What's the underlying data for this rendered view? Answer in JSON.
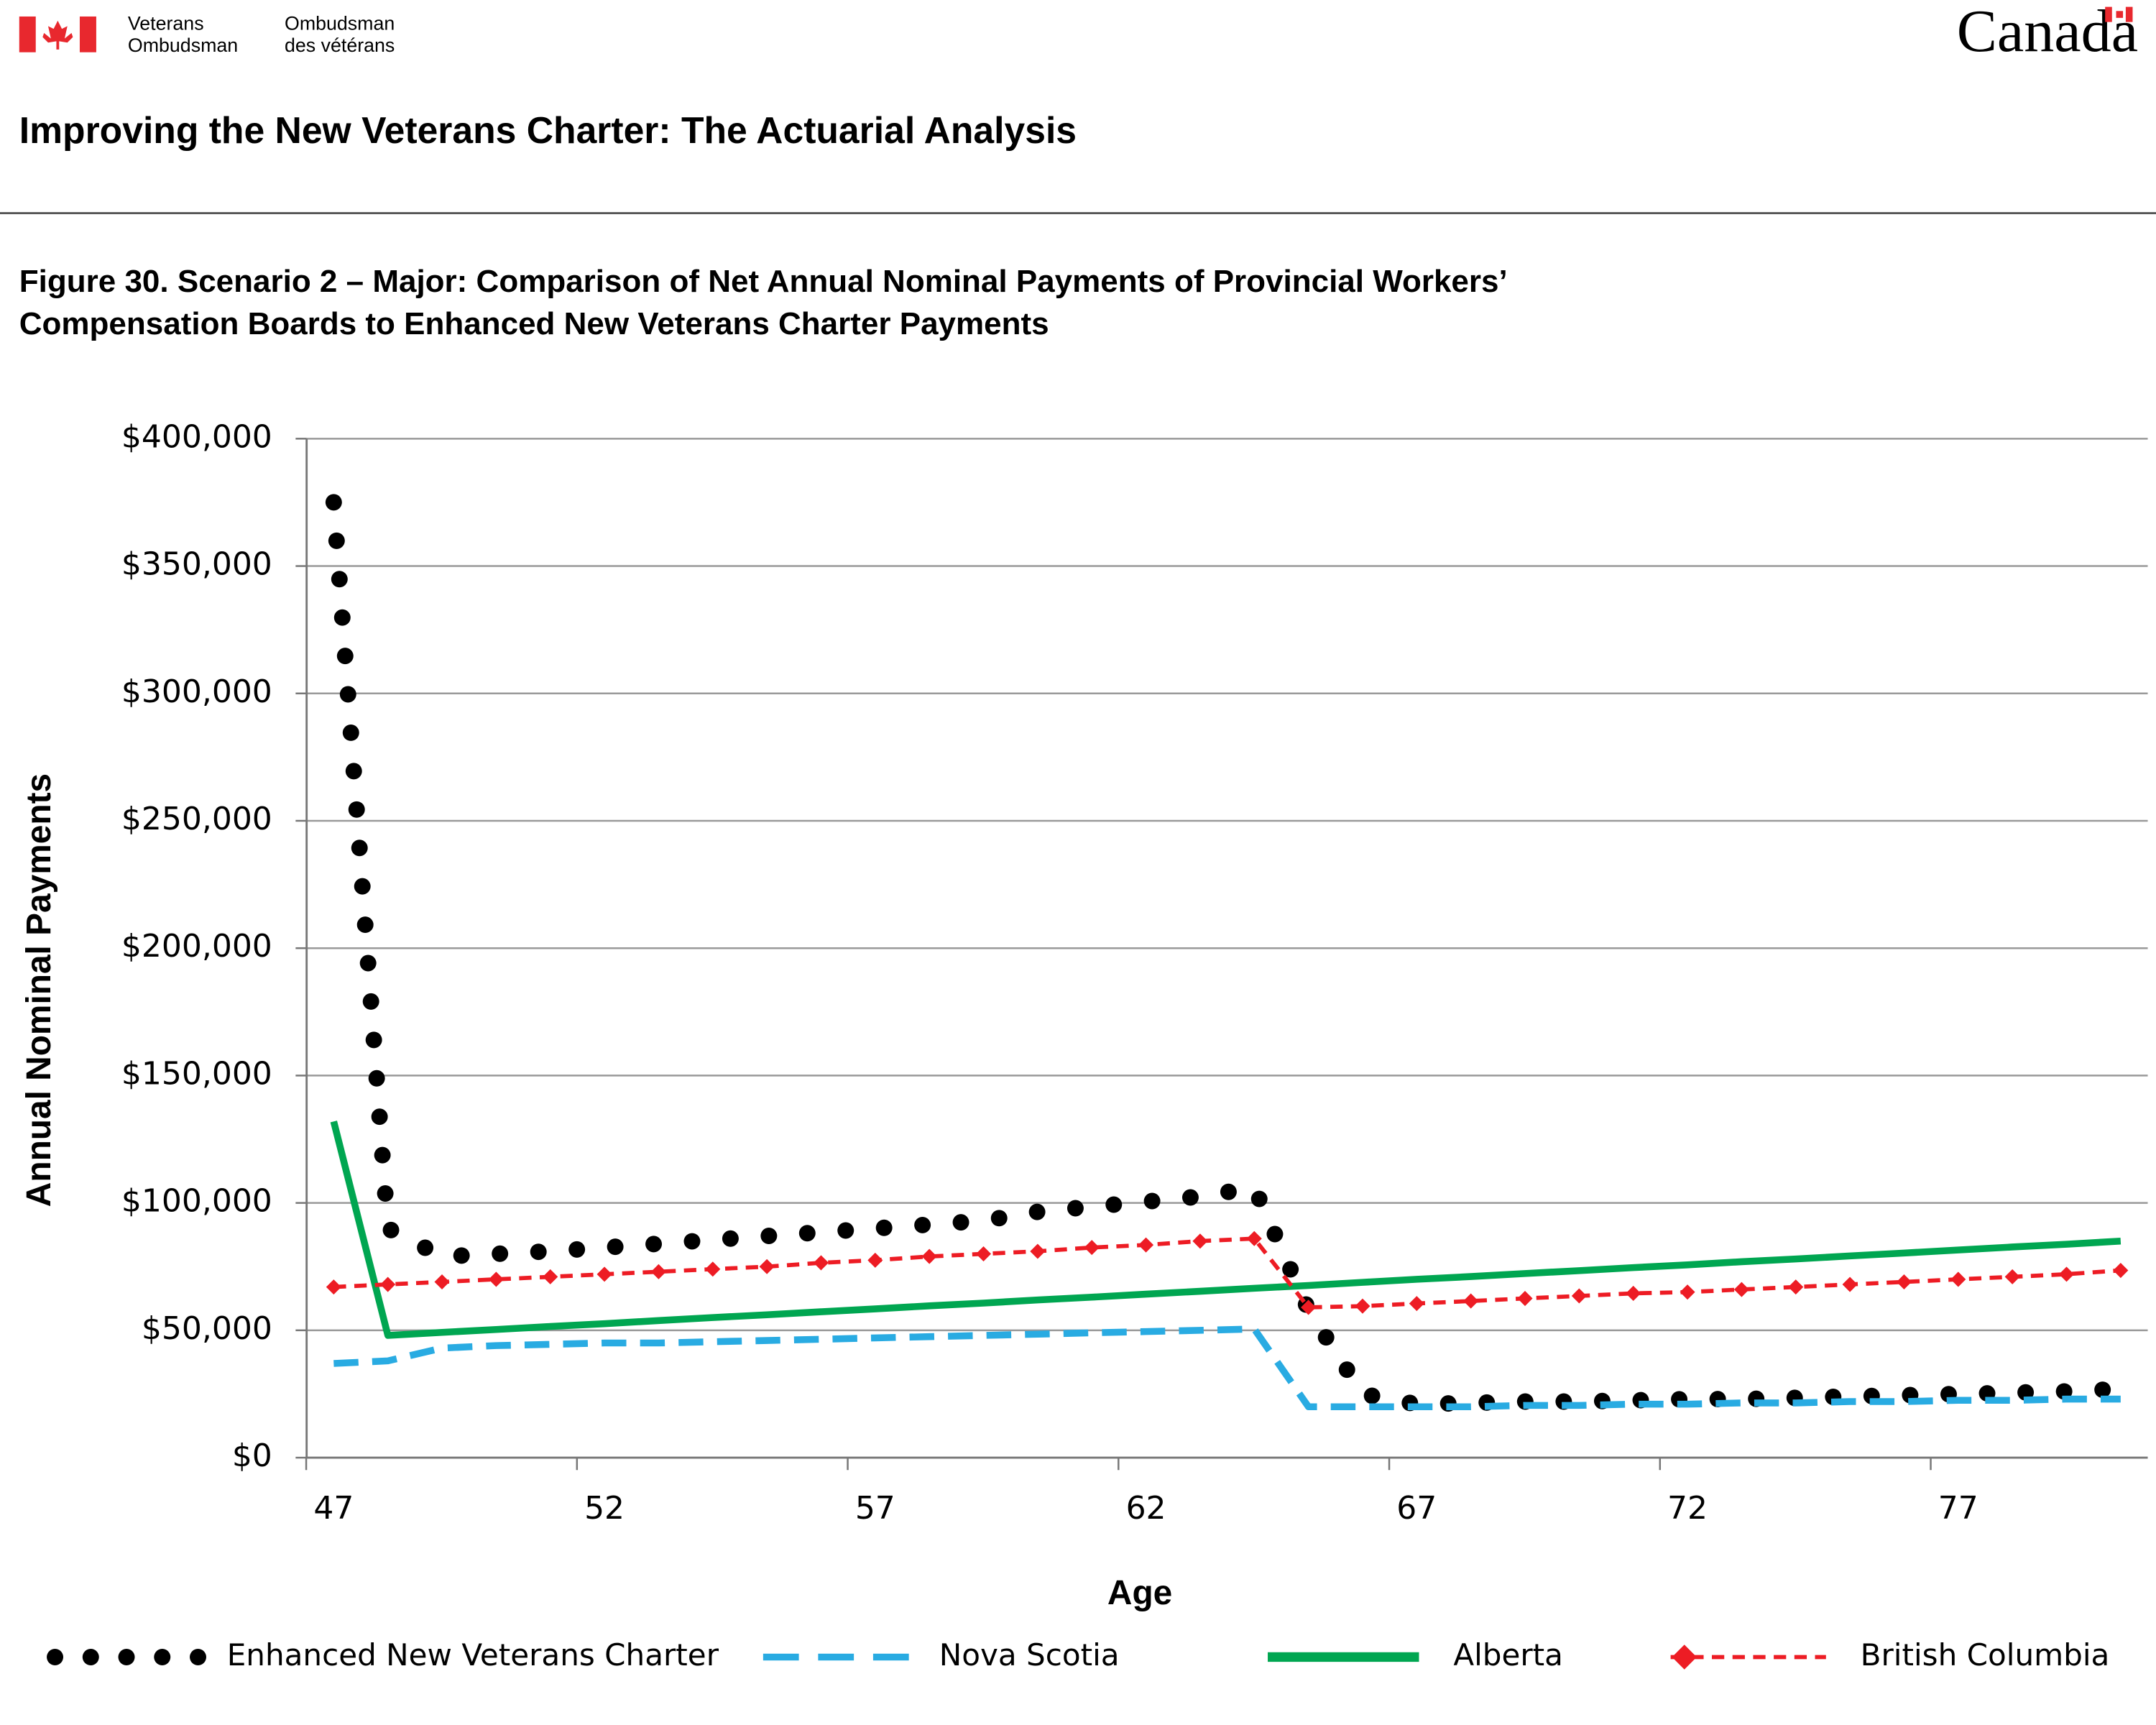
{
  "header": {
    "org_en": [
      "Veterans",
      "Ombudsman"
    ],
    "org_fr": [
      "Ombudsman",
      "des vétérans"
    ],
    "wordmark": "Canada",
    "title": "Improving the New Veterans Charter: The Actuarial Analysis"
  },
  "chart_data": {
    "type": "line",
    "title": [
      "Figure 30. Scenario 2 – Major: Comparison of Net Annual Nominal Payments of Provincial Workers’",
      "Compensation Boards to Enhanced New Veterans Charter Payments"
    ],
    "x_label": "Age",
    "y_label": "Annual Nominal Payments",
    "x": [
      47,
      48,
      49,
      50,
      51,
      52,
      53,
      54,
      55,
      56,
      57,
      58,
      59,
      60,
      61,
      62,
      63,
      64,
      65,
      66,
      67,
      68,
      69,
      70,
      71,
      72,
      73,
      74,
      75,
      76,
      77,
      78,
      79,
      80
    ],
    "xlim": [
      46.5,
      80.5
    ],
    "xticks": [
      47,
      52,
      57,
      62,
      67,
      72,
      77
    ],
    "ylim": [
      0,
      400000
    ],
    "yticks": [
      {
        "value": 0,
        "label": "$0"
      },
      {
        "value": 50000,
        "label": "$50,000"
      },
      {
        "value": 100000,
        "label": "$100,000"
      },
      {
        "value": 150000,
        "label": "$150,000"
      },
      {
        "value": 200000,
        "label": "$200,000"
      },
      {
        "value": 250000,
        "label": "$250,000"
      },
      {
        "value": 300000,
        "label": "$300,000"
      },
      {
        "value": 350000,
        "label": "$350,000"
      },
      {
        "value": 400000,
        "label": "$400,000"
      }
    ],
    "grid": true,
    "legend": "bottom",
    "series": [
      {
        "name": "Enhanced New Veterans Charter",
        "color": "#000000",
        "style": "dotted",
        "values": [
          375000,
          90000,
          79000,
          80000,
          81000,
          82500,
          84000,
          85500,
          87000,
          88500,
          90000,
          91500,
          93000,
          96500,
          98500,
          100500,
          102500,
          106000,
          58000,
          25000,
          21000,
          21500,
          22000,
          22000,
          22500,
          23000,
          23000,
          23500,
          24000,
          24500,
          25000,
          25500,
          26000,
          27000
        ]
      },
      {
        "name": "Nova Scotia",
        "color": "#29abe2",
        "style": "dashed",
        "values": [
          37000,
          38000,
          43000,
          44000,
          44500,
          45000,
          45000,
          45500,
          46000,
          46500,
          47000,
          47500,
          48000,
          48500,
          49000,
          49500,
          50000,
          50500,
          20000,
          20000,
          20000,
          20000,
          20500,
          20500,
          21000,
          21000,
          21500,
          21500,
          22000,
          22000,
          22500,
          22500,
          23000,
          23000
        ]
      },
      {
        "name": "Alberta",
        "color": "#00a651",
        "style": "solid",
        "values": [
          132000,
          48000,
          49200,
          50300,
          51500,
          52600,
          53800,
          55000,
          56100,
          57300,
          58400,
          59600,
          60700,
          61900,
          63000,
          64200,
          65300,
          66500,
          67600,
          68800,
          70000,
          71100,
          72300,
          73400,
          74600,
          75700,
          76900,
          78000,
          79200,
          80300,
          81500,
          82700,
          83800,
          85000
        ]
      },
      {
        "name": "British Columbia",
        "color": "#ed1c24",
        "style": "dashed-diamond",
        "values": [
          67000,
          68000,
          69000,
          70000,
          71000,
          72000,
          73000,
          74000,
          75000,
          76500,
          77500,
          79000,
          80000,
          81000,
          82500,
          83500,
          85000,
          86000,
          59000,
          59500,
          60500,
          61500,
          62500,
          63500,
          64500,
          65000,
          66000,
          67000,
          68000,
          69000,
          70000,
          71000,
          72000,
          73500
        ]
      }
    ]
  }
}
